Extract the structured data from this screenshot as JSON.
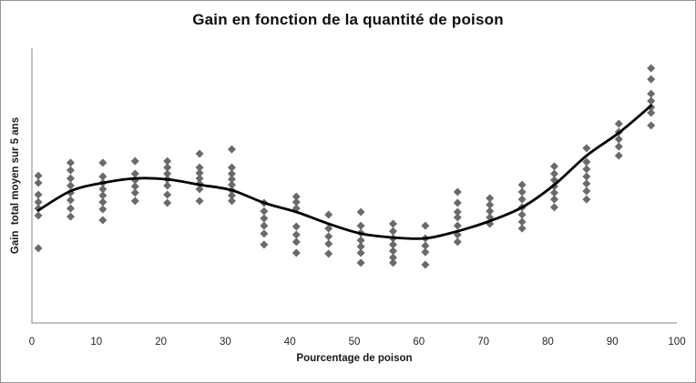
{
  "colors": {
    "background": "#ffffff",
    "frame_border": "#949494",
    "axis_line": "#808080",
    "marker": "#6a6a6a",
    "trendline": "#000000",
    "title_text": "#0d0d0d",
    "tick_text": "#262626"
  },
  "chart_data": {
    "type": "scatter",
    "title": "Gain en fonction de la quantité de poison",
    "xlabel": "Pourcentage de poison",
    "ylabel": "Gain  total moyen sur 5 ans",
    "xlim": [
      0,
      100
    ],
    "ylim": [
      0,
      100
    ],
    "x_ticks": [
      0,
      10,
      20,
      30,
      40,
      50,
      60,
      70,
      80,
      90,
      100
    ],
    "y_ticks_visible": false,
    "grid": false,
    "legend": "none",
    "marker": {
      "shape": "diamond",
      "size": 9
    },
    "note_y_units": "y-axis shows no numeric labels; gain values are relative units 0-100 of plot height",
    "clusters": [
      {
        "x": 1,
        "gains": [
          53.6,
          51.0,
          46.7,
          44.0,
          41.7,
          39.1,
          27.2
        ]
      },
      {
        "x": 6,
        "gains": [
          58.3,
          55.6,
          52.6,
          50.0,
          47.4,
          44.7,
          41.7,
          38.7
        ]
      },
      {
        "x": 11,
        "gains": [
          58.3,
          53.3,
          51.0,
          48.7,
          46.4,
          44.0,
          41.4,
          37.4
        ]
      },
      {
        "x": 16,
        "gains": [
          58.9,
          54.3,
          52.0,
          49.7,
          47.4,
          44.4
        ]
      },
      {
        "x": 21,
        "gains": [
          58.9,
          56.6,
          54.3,
          52.3,
          50.0,
          46.7,
          43.7
        ]
      },
      {
        "x": 26,
        "gains": [
          61.6,
          56.6,
          54.6,
          52.6,
          50.7,
          48.7,
          44.4
        ]
      },
      {
        "x": 31,
        "gains": [
          63.2,
          56.6,
          54.3,
          52.3,
          50.3,
          48.3,
          46.4,
          44.4
        ]
      },
      {
        "x": 36,
        "gains": [
          43.7,
          40.7,
          38.1,
          35.4,
          32.5,
          28.5
        ]
      },
      {
        "x": 41,
        "gains": [
          46.0,
          44.0,
          41.7,
          35.1,
          32.1,
          29.5,
          25.5
        ]
      },
      {
        "x": 46,
        "gains": [
          39.4,
          34.4,
          31.5,
          28.8,
          25.2
        ]
      },
      {
        "x": 51,
        "gains": [
          40.4,
          35.4,
          32.8,
          30.1,
          27.8,
          25.5,
          21.9
        ]
      },
      {
        "x": 56,
        "gains": [
          36.1,
          33.4,
          30.8,
          28.5,
          26.2,
          23.8,
          21.9
        ]
      },
      {
        "x": 61,
        "gains": [
          35.4,
          30.8,
          28.1,
          25.8,
          21.2
        ]
      },
      {
        "x": 66,
        "gains": [
          47.7,
          43.7,
          40.4,
          38.4,
          35.4,
          32.1,
          29.5
        ]
      },
      {
        "x": 71,
        "gains": [
          45.4,
          43.0,
          40.7,
          38.4,
          36.1
        ]
      },
      {
        "x": 76,
        "gains": [
          50.3,
          47.7,
          45.0,
          42.1,
          39.4,
          36.8,
          34.4
        ]
      },
      {
        "x": 81,
        "gains": [
          57.0,
          54.3,
          52.0,
          49.7,
          47.4,
          45.0,
          42.1
        ]
      },
      {
        "x": 86,
        "gains": [
          63.6,
          58.6,
          56.0,
          53.3,
          50.7,
          48.0,
          45.0
        ]
      },
      {
        "x": 91,
        "gains": [
          72.5,
          69.5,
          66.9,
          64.2,
          60.9
        ]
      },
      {
        "x": 96,
        "gains": [
          92.7,
          88.7,
          83.4,
          80.8,
          78.5,
          76.5,
          71.9
        ]
      }
    ],
    "trendline": {
      "type": "polynomial-cubic",
      "points": [
        [
          1,
          41.0
        ],
        [
          6,
          48.0
        ],
        [
          11,
          51.0
        ],
        [
          16,
          52.6
        ],
        [
          21,
          52.3
        ],
        [
          26,
          50.3
        ],
        [
          31,
          48.3
        ],
        [
          36,
          43.7
        ],
        [
          41,
          40.4
        ],
        [
          46,
          36.1
        ],
        [
          51,
          32.5
        ],
        [
          56,
          31.1
        ],
        [
          61,
          30.8
        ],
        [
          66,
          33.4
        ],
        [
          71,
          37.1
        ],
        [
          76,
          42.1
        ],
        [
          81,
          50.3
        ],
        [
          86,
          60.9
        ],
        [
          91,
          69.2
        ],
        [
          96,
          79.1
        ]
      ]
    }
  }
}
